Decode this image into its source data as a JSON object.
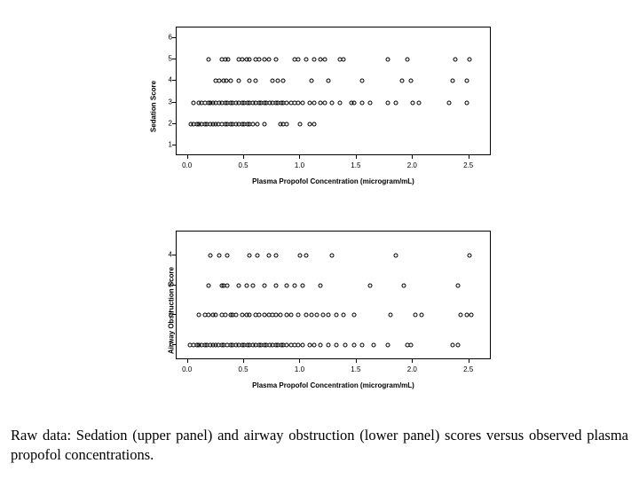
{
  "caption_text": "Raw data: Sedation (upper panel) and airway obstruction (lower panel) scores versus observed plasma propofol concentrations.",
  "panel_top": {
    "y_axis_label": "Sedation Score",
    "x_axis_label": "Plasma Propofol Concentration (microgram/mL)",
    "xlim": [
      -0.1,
      2.7
    ],
    "ylim": [
      0.5,
      6.5
    ],
    "x_ticks": [
      0.0,
      0.5,
      1.0,
      1.5,
      2.0,
      2.5
    ],
    "x_tick_labels": [
      "0.0",
      "0.5",
      "1.0",
      "1.5",
      "2.0",
      "2.5"
    ],
    "y_ticks": [
      1,
      2,
      3,
      4,
      5,
      6
    ],
    "y_tick_labels": [
      "1",
      "2",
      "3",
      "4",
      "5",
      "6"
    ],
    "marker_style": "open-circle",
    "marker_color": "#000000",
    "background_color": "#ffffff",
    "border_color": "#000000",
    "points": [
      {
        "x": 0.18,
        "y": 5
      },
      {
        "x": 0.3,
        "y": 5
      },
      {
        "x": 0.33,
        "y": 5
      },
      {
        "x": 0.36,
        "y": 5
      },
      {
        "x": 0.45,
        "y": 5
      },
      {
        "x": 0.48,
        "y": 5
      },
      {
        "x": 0.52,
        "y": 5
      },
      {
        "x": 0.55,
        "y": 5
      },
      {
        "x": 0.6,
        "y": 5
      },
      {
        "x": 0.63,
        "y": 5
      },
      {
        "x": 0.68,
        "y": 5
      },
      {
        "x": 0.72,
        "y": 5
      },
      {
        "x": 0.78,
        "y": 5
      },
      {
        "x": 0.95,
        "y": 5
      },
      {
        "x": 0.98,
        "y": 5
      },
      {
        "x": 1.05,
        "y": 5
      },
      {
        "x": 1.12,
        "y": 5
      },
      {
        "x": 1.18,
        "y": 5
      },
      {
        "x": 1.22,
        "y": 5
      },
      {
        "x": 1.35,
        "y": 5
      },
      {
        "x": 1.38,
        "y": 5
      },
      {
        "x": 1.78,
        "y": 5
      },
      {
        "x": 1.95,
        "y": 5
      },
      {
        "x": 2.38,
        "y": 5
      },
      {
        "x": 2.5,
        "y": 5
      },
      {
        "x": 0.25,
        "y": 4
      },
      {
        "x": 0.28,
        "y": 4
      },
      {
        "x": 0.32,
        "y": 4
      },
      {
        "x": 0.34,
        "y": 4
      },
      {
        "x": 0.38,
        "y": 4
      },
      {
        "x": 0.45,
        "y": 4
      },
      {
        "x": 0.55,
        "y": 4
      },
      {
        "x": 0.6,
        "y": 4
      },
      {
        "x": 0.75,
        "y": 4
      },
      {
        "x": 0.8,
        "y": 4
      },
      {
        "x": 0.85,
        "y": 4
      },
      {
        "x": 1.1,
        "y": 4
      },
      {
        "x": 1.25,
        "y": 4
      },
      {
        "x": 1.55,
        "y": 4
      },
      {
        "x": 1.9,
        "y": 4
      },
      {
        "x": 1.98,
        "y": 4
      },
      {
        "x": 2.35,
        "y": 4
      },
      {
        "x": 2.48,
        "y": 4
      },
      {
        "x": 0.05,
        "y": 3
      },
      {
        "x": 0.1,
        "y": 3
      },
      {
        "x": 0.12,
        "y": 3
      },
      {
        "x": 0.15,
        "y": 3
      },
      {
        "x": 0.18,
        "y": 3
      },
      {
        "x": 0.2,
        "y": 3
      },
      {
        "x": 0.22,
        "y": 3
      },
      {
        "x": 0.25,
        "y": 3
      },
      {
        "x": 0.28,
        "y": 3
      },
      {
        "x": 0.3,
        "y": 3
      },
      {
        "x": 0.33,
        "y": 3
      },
      {
        "x": 0.35,
        "y": 3
      },
      {
        "x": 0.38,
        "y": 3
      },
      {
        "x": 0.4,
        "y": 3
      },
      {
        "x": 0.43,
        "y": 3
      },
      {
        "x": 0.45,
        "y": 3
      },
      {
        "x": 0.48,
        "y": 3
      },
      {
        "x": 0.5,
        "y": 3
      },
      {
        "x": 0.53,
        "y": 3
      },
      {
        "x": 0.55,
        "y": 3
      },
      {
        "x": 0.58,
        "y": 3
      },
      {
        "x": 0.6,
        "y": 3
      },
      {
        "x": 0.63,
        "y": 3
      },
      {
        "x": 0.65,
        "y": 3
      },
      {
        "x": 0.68,
        "y": 3
      },
      {
        "x": 0.7,
        "y": 3
      },
      {
        "x": 0.73,
        "y": 3
      },
      {
        "x": 0.75,
        "y": 3
      },
      {
        "x": 0.78,
        "y": 3
      },
      {
        "x": 0.8,
        "y": 3
      },
      {
        "x": 0.83,
        "y": 3
      },
      {
        "x": 0.85,
        "y": 3
      },
      {
        "x": 0.88,
        "y": 3
      },
      {
        "x": 0.92,
        "y": 3
      },
      {
        "x": 0.95,
        "y": 3
      },
      {
        "x": 0.98,
        "y": 3
      },
      {
        "x": 1.02,
        "y": 3
      },
      {
        "x": 1.08,
        "y": 3
      },
      {
        "x": 1.12,
        "y": 3
      },
      {
        "x": 1.18,
        "y": 3
      },
      {
        "x": 1.22,
        "y": 3
      },
      {
        "x": 1.28,
        "y": 3
      },
      {
        "x": 1.35,
        "y": 3
      },
      {
        "x": 1.45,
        "y": 3
      },
      {
        "x": 1.48,
        "y": 3
      },
      {
        "x": 1.55,
        "y": 3
      },
      {
        "x": 1.62,
        "y": 3
      },
      {
        "x": 1.78,
        "y": 3
      },
      {
        "x": 1.85,
        "y": 3
      },
      {
        "x": 2.0,
        "y": 3
      },
      {
        "x": 2.05,
        "y": 3
      },
      {
        "x": 2.32,
        "y": 3
      },
      {
        "x": 2.48,
        "y": 3
      },
      {
        "x": 0.03,
        "y": 2
      },
      {
        "x": 0.05,
        "y": 2
      },
      {
        "x": 0.08,
        "y": 2
      },
      {
        "x": 0.1,
        "y": 2
      },
      {
        "x": 0.12,
        "y": 2
      },
      {
        "x": 0.15,
        "y": 2
      },
      {
        "x": 0.17,
        "y": 2
      },
      {
        "x": 0.2,
        "y": 2
      },
      {
        "x": 0.22,
        "y": 2
      },
      {
        "x": 0.25,
        "y": 2
      },
      {
        "x": 0.27,
        "y": 2
      },
      {
        "x": 0.3,
        "y": 2
      },
      {
        "x": 0.33,
        "y": 2
      },
      {
        "x": 0.35,
        "y": 2
      },
      {
        "x": 0.38,
        "y": 2
      },
      {
        "x": 0.4,
        "y": 2
      },
      {
        "x": 0.43,
        "y": 2
      },
      {
        "x": 0.45,
        "y": 2
      },
      {
        "x": 0.48,
        "y": 2
      },
      {
        "x": 0.5,
        "y": 2
      },
      {
        "x": 0.53,
        "y": 2
      },
      {
        "x": 0.55,
        "y": 2
      },
      {
        "x": 0.58,
        "y": 2
      },
      {
        "x": 0.62,
        "y": 2
      },
      {
        "x": 0.68,
        "y": 2
      },
      {
        "x": 0.82,
        "y": 2
      },
      {
        "x": 0.85,
        "y": 2
      },
      {
        "x": 0.88,
        "y": 2
      },
      {
        "x": 1.0,
        "y": 2
      },
      {
        "x": 1.08,
        "y": 2
      },
      {
        "x": 1.12,
        "y": 2
      }
    ]
  },
  "panel_bottom": {
    "y_axis_label": "Airway Obstruction Score",
    "x_axis_label": "Plasma Propofol Concentration (microgram/mL)",
    "xlim": [
      -0.1,
      2.7
    ],
    "ylim": [
      0.5,
      4.8
    ],
    "x_ticks": [
      0.0,
      0.5,
      1.0,
      1.5,
      2.0,
      2.5
    ],
    "x_tick_labels": [
      "0.0",
      "0.5",
      "1.0",
      "1.5",
      "2.0",
      "2.5"
    ],
    "y_ticks": [
      1,
      2,
      3,
      4
    ],
    "y_tick_labels": [
      "1",
      "2",
      "3",
      "4"
    ],
    "marker_style": "open-circle",
    "marker_color": "#000000",
    "background_color": "#ffffff",
    "border_color": "#000000",
    "points": [
      {
        "x": 0.2,
        "y": 4
      },
      {
        "x": 0.28,
        "y": 4
      },
      {
        "x": 0.35,
        "y": 4
      },
      {
        "x": 0.55,
        "y": 4
      },
      {
        "x": 0.62,
        "y": 4
      },
      {
        "x": 0.72,
        "y": 4
      },
      {
        "x": 0.78,
        "y": 4
      },
      {
        "x": 1.0,
        "y": 4
      },
      {
        "x": 1.05,
        "y": 4
      },
      {
        "x": 1.28,
        "y": 4
      },
      {
        "x": 1.85,
        "y": 4
      },
      {
        "x": 2.5,
        "y": 4
      },
      {
        "x": 0.18,
        "y": 3
      },
      {
        "x": 0.3,
        "y": 3
      },
      {
        "x": 0.32,
        "y": 3
      },
      {
        "x": 0.35,
        "y": 3
      },
      {
        "x": 0.45,
        "y": 3
      },
      {
        "x": 0.52,
        "y": 3
      },
      {
        "x": 0.58,
        "y": 3
      },
      {
        "x": 0.68,
        "y": 3
      },
      {
        "x": 0.78,
        "y": 3
      },
      {
        "x": 0.88,
        "y": 3
      },
      {
        "x": 0.95,
        "y": 3
      },
      {
        "x": 1.02,
        "y": 3
      },
      {
        "x": 1.18,
        "y": 3
      },
      {
        "x": 1.62,
        "y": 3
      },
      {
        "x": 1.92,
        "y": 3
      },
      {
        "x": 2.4,
        "y": 3
      },
      {
        "x": 0.1,
        "y": 2
      },
      {
        "x": 0.15,
        "y": 2
      },
      {
        "x": 0.18,
        "y": 2
      },
      {
        "x": 0.22,
        "y": 2
      },
      {
        "x": 0.25,
        "y": 2
      },
      {
        "x": 0.3,
        "y": 2
      },
      {
        "x": 0.33,
        "y": 2
      },
      {
        "x": 0.38,
        "y": 2
      },
      {
        "x": 0.4,
        "y": 2
      },
      {
        "x": 0.43,
        "y": 2
      },
      {
        "x": 0.48,
        "y": 2
      },
      {
        "x": 0.52,
        "y": 2
      },
      {
        "x": 0.55,
        "y": 2
      },
      {
        "x": 0.6,
        "y": 2
      },
      {
        "x": 0.63,
        "y": 2
      },
      {
        "x": 0.68,
        "y": 2
      },
      {
        "x": 0.72,
        "y": 2
      },
      {
        "x": 0.75,
        "y": 2
      },
      {
        "x": 0.78,
        "y": 2
      },
      {
        "x": 0.82,
        "y": 2
      },
      {
        "x": 0.88,
        "y": 2
      },
      {
        "x": 0.92,
        "y": 2
      },
      {
        "x": 0.98,
        "y": 2
      },
      {
        "x": 1.05,
        "y": 2
      },
      {
        "x": 1.1,
        "y": 2
      },
      {
        "x": 1.15,
        "y": 2
      },
      {
        "x": 1.2,
        "y": 2
      },
      {
        "x": 1.25,
        "y": 2
      },
      {
        "x": 1.32,
        "y": 2
      },
      {
        "x": 1.38,
        "y": 2
      },
      {
        "x": 1.48,
        "y": 2
      },
      {
        "x": 1.8,
        "y": 2
      },
      {
        "x": 2.02,
        "y": 2
      },
      {
        "x": 2.08,
        "y": 2
      },
      {
        "x": 2.42,
        "y": 2
      },
      {
        "x": 2.48,
        "y": 2
      },
      {
        "x": 2.52,
        "y": 2
      },
      {
        "x": 0.02,
        "y": 1
      },
      {
        "x": 0.05,
        "y": 1
      },
      {
        "x": 0.08,
        "y": 1
      },
      {
        "x": 0.1,
        "y": 1
      },
      {
        "x": 0.12,
        "y": 1
      },
      {
        "x": 0.15,
        "y": 1
      },
      {
        "x": 0.17,
        "y": 1
      },
      {
        "x": 0.2,
        "y": 1
      },
      {
        "x": 0.22,
        "y": 1
      },
      {
        "x": 0.25,
        "y": 1
      },
      {
        "x": 0.27,
        "y": 1
      },
      {
        "x": 0.3,
        "y": 1
      },
      {
        "x": 0.32,
        "y": 1
      },
      {
        "x": 0.35,
        "y": 1
      },
      {
        "x": 0.38,
        "y": 1
      },
      {
        "x": 0.4,
        "y": 1
      },
      {
        "x": 0.43,
        "y": 1
      },
      {
        "x": 0.45,
        "y": 1
      },
      {
        "x": 0.48,
        "y": 1
      },
      {
        "x": 0.5,
        "y": 1
      },
      {
        "x": 0.53,
        "y": 1
      },
      {
        "x": 0.55,
        "y": 1
      },
      {
        "x": 0.58,
        "y": 1
      },
      {
        "x": 0.6,
        "y": 1
      },
      {
        "x": 0.63,
        "y": 1
      },
      {
        "x": 0.65,
        "y": 1
      },
      {
        "x": 0.68,
        "y": 1
      },
      {
        "x": 0.7,
        "y": 1
      },
      {
        "x": 0.73,
        "y": 1
      },
      {
        "x": 0.75,
        "y": 1
      },
      {
        "x": 0.78,
        "y": 1
      },
      {
        "x": 0.8,
        "y": 1
      },
      {
        "x": 0.83,
        "y": 1
      },
      {
        "x": 0.85,
        "y": 1
      },
      {
        "x": 0.88,
        "y": 1
      },
      {
        "x": 0.92,
        "y": 1
      },
      {
        "x": 0.95,
        "y": 1
      },
      {
        "x": 0.98,
        "y": 1
      },
      {
        "x": 1.02,
        "y": 1
      },
      {
        "x": 1.08,
        "y": 1
      },
      {
        "x": 1.12,
        "y": 1
      },
      {
        "x": 1.18,
        "y": 1
      },
      {
        "x": 1.25,
        "y": 1
      },
      {
        "x": 1.32,
        "y": 1
      },
      {
        "x": 1.4,
        "y": 1
      },
      {
        "x": 1.48,
        "y": 1
      },
      {
        "x": 1.55,
        "y": 1
      },
      {
        "x": 1.65,
        "y": 1
      },
      {
        "x": 1.78,
        "y": 1
      },
      {
        "x": 1.95,
        "y": 1
      },
      {
        "x": 1.98,
        "y": 1
      },
      {
        "x": 2.35,
        "y": 1
      },
      {
        "x": 2.4,
        "y": 1
      }
    ]
  }
}
